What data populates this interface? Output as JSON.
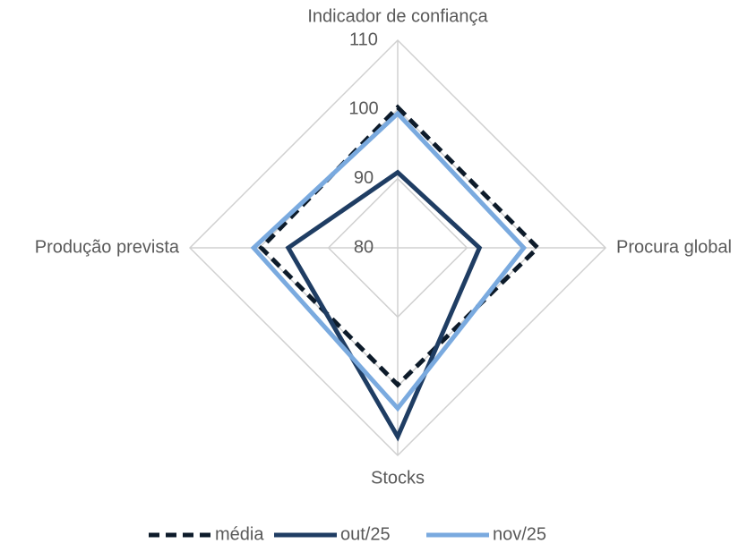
{
  "chart_data": {
    "type": "radar",
    "categories": [
      "Indicador de confiança",
      "Procura global",
      "Stocks",
      "Produção prevista"
    ],
    "series": [
      {
        "name": "média",
        "color": "#0d1b2a",
        "dash": true,
        "values": [
          100.3,
          100.2,
          99.8,
          99.7
        ]
      },
      {
        "name": "out/25",
        "color": "#1f3d63",
        "dash": false,
        "values": [
          90.9,
          91.8,
          107.3,
          95.8
        ]
      },
      {
        "name": "nov/25",
        "color": "#7aaadf",
        "dash": false,
        "values": [
          99.4,
          98.2,
          103.2,
          100.8
        ]
      }
    ],
    "rlim": [
      80,
      110
    ],
    "rticks": [
      80,
      90,
      100,
      110
    ],
    "grid": true,
    "legend": "bottom"
  }
}
